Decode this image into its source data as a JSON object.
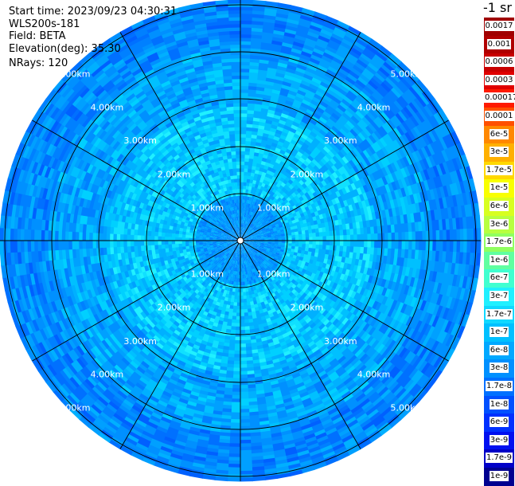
{
  "info": {
    "start_time": "Start time: 2023/09/23 04:30:31",
    "instrument": "WLS200s-181",
    "field": "Field: BETA",
    "elevation": "Elevation(deg): 35.30",
    "nrays": "NRays: 120"
  },
  "colorbar": {
    "title": "-1 sr",
    "labels": [
      "0.0017",
      "0.001",
      "0.0006",
      "0.0003",
      "0.00017",
      "0.0001",
      "6e-5",
      "3e-5",
      "1.7e-5",
      "1e-5",
      "6e-6",
      "3e-6",
      "1.7e-6",
      "1e-6",
      "6e-7",
      "3e-7",
      "1.7e-7",
      "1e-7",
      "6e-8",
      "3e-8",
      "1.7e-8",
      "1e-8",
      "6e-9",
      "3e-9",
      "1.7e-9",
      "1e-9"
    ],
    "colors": [
      "#a00000",
      "#b00000",
      "#c80000",
      "#e00000",
      "#ff1a00",
      "#ff5000",
      "#ff8800",
      "#ffb000",
      "#ffd800",
      "#f8ff00",
      "#d8ff20",
      "#b8ff40",
      "#90ff60",
      "#60ffa0",
      "#40ffd0",
      "#20f0ff",
      "#10d8ff",
      "#00c0ff",
      "#00a8ff",
      "#0090ff",
      "#0070ff",
      "#0050ff",
      "#0030ff",
      "#0010f0",
      "#0000c8",
      "#000090"
    ]
  },
  "rings": [
    {
      "label": "1.00km"
    },
    {
      "label": "2.00km"
    },
    {
      "label": "3.00km"
    },
    {
      "label": "4.00km"
    },
    {
      "label": "5.00km"
    }
  ]
}
